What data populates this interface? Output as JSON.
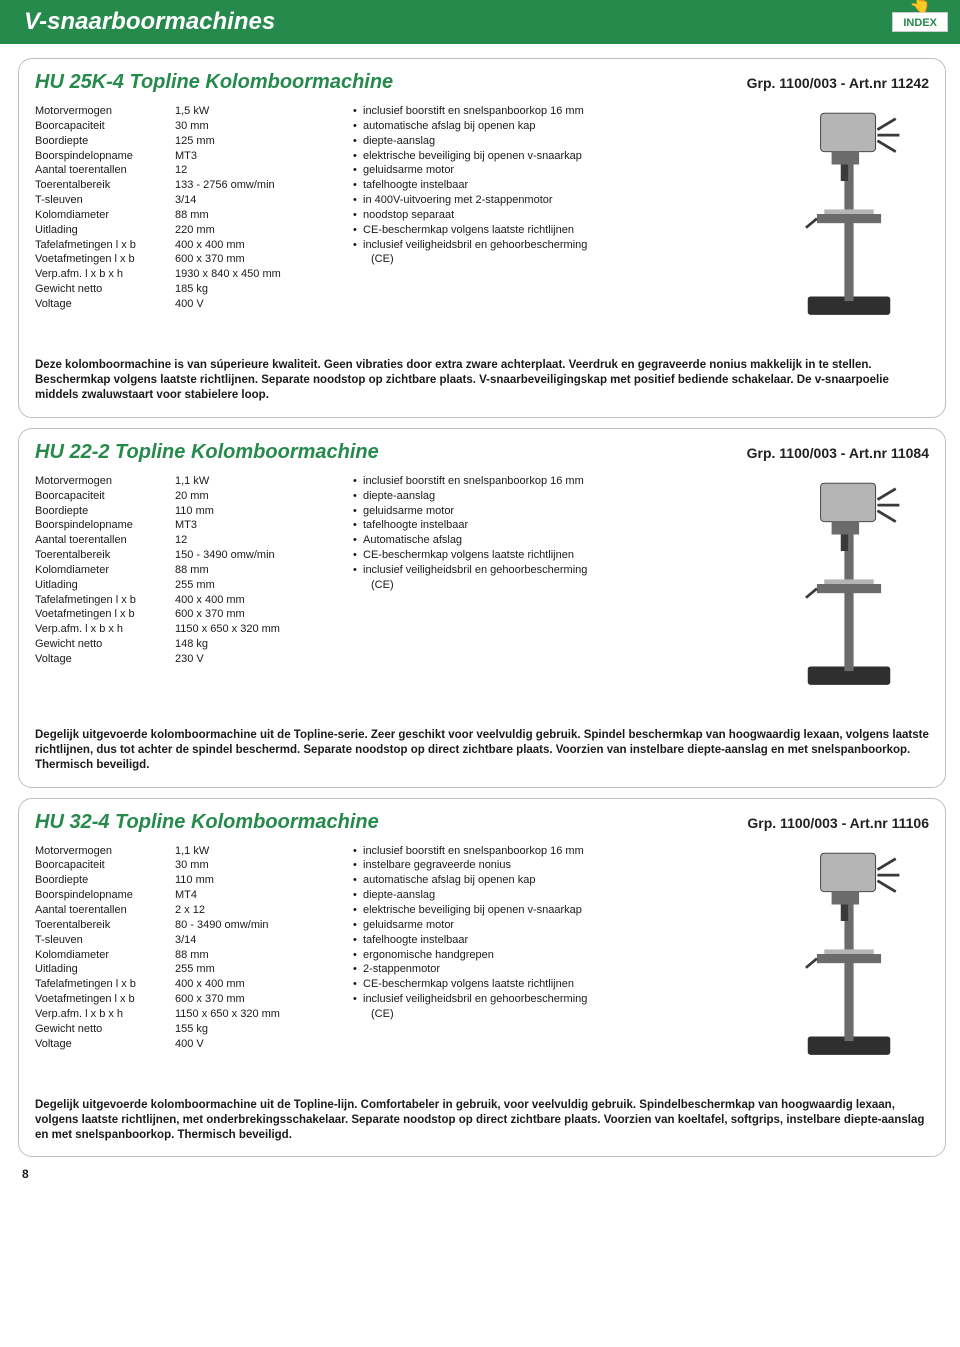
{
  "page": {
    "category_title": "V-snaarboormachines",
    "index_label": "INDEX",
    "page_number": "8"
  },
  "products": [
    {
      "title": "HU 25K-4 Topline Kolomboormachine",
      "ref": "Grp. 1100/003 - Art.nr 11242",
      "specs": [
        {
          "label": "Motorvermogen",
          "value": "1,5 kW"
        },
        {
          "label": "Boorcapaciteit",
          "value": "30 mm"
        },
        {
          "label": "Boordiepte",
          "value": "125 mm"
        },
        {
          "label": "Boorspindelopname",
          "value": "MT3"
        },
        {
          "label": "Aantal toerentallen",
          "value": "12"
        },
        {
          "label": "Toerentalbereik",
          "value": "133 - 2756 omw/min"
        },
        {
          "label": "T-sleuven",
          "value": "3/14"
        },
        {
          "label": "Kolomdiameter",
          "value": "88 mm"
        },
        {
          "label": "Uitlading",
          "value": "220 mm"
        },
        {
          "label": "Tafelafmetingen l x b",
          "value": "400 x 400 mm"
        },
        {
          "label": "Voetafmetingen l x b",
          "value": "600 x 370 mm"
        },
        {
          "label": "Verp.afm. l x b x h",
          "value": "1930 x 840 x 450 mm"
        },
        {
          "label": "Gewicht netto",
          "value": "185 kg"
        },
        {
          "label": "Voltage",
          "value": "400 V"
        }
      ],
      "features": [
        {
          "text": "inclusief boorstift en snelspanboorkop 16 mm"
        },
        {
          "text": "automatische afslag bij openen kap"
        },
        {
          "text": "diepte-aanslag"
        },
        {
          "text": "elektrische beveiliging bij openen v-snaarkap"
        },
        {
          "text": "geluidsarme motor"
        },
        {
          "text": "tafelhoogte instelbaar"
        },
        {
          "text": "in 400V-uitvoering met 2-stappenmotor"
        },
        {
          "text": "noodstop separaat"
        },
        {
          "text": "CE-beschermkap volgens laatste richtlijnen"
        },
        {
          "text": "inclusief veiligheidsbril en gehoorbescherming"
        },
        {
          "text": "(CE)",
          "indent": true
        }
      ],
      "description": "Deze kolomboormachine is van súperieure kwaliteit. Geen vibraties door extra zware achterplaat. Veerdruk en gegraveerde nonius makkelijk in te stellen. Beschermkap volgens laatste richtlijnen. Separate noodstop op zichtbare plaats. V-snaarbeveiligingskap met positief bediende schakelaar. De v-snaarpoelie middels zwaluwstaart voor stabielere loop."
    },
    {
      "title": "HU 22-2 Topline Kolomboormachine",
      "ref": "Grp. 1100/003 - Art.nr 11084",
      "specs": [
        {
          "label": "Motorvermogen",
          "value": "1,1 kW"
        },
        {
          "label": "Boorcapaciteit",
          "value": "20 mm"
        },
        {
          "label": "Boordiepte",
          "value": "110 mm"
        },
        {
          "label": "Boorspindelopname",
          "value": "MT3"
        },
        {
          "label": "Aantal toerentallen",
          "value": "12"
        },
        {
          "label": "Toerentalbereik",
          "value": "150 - 3490 omw/min"
        },
        {
          "label": "Kolomdiameter",
          "value": "88 mm"
        },
        {
          "label": "Uitlading",
          "value": "255 mm"
        },
        {
          "label": "Tafelafmetingen l x b",
          "value": "400 x 400 mm"
        },
        {
          "label": "Voetafmetingen l x b",
          "value": "600 x 370 mm"
        },
        {
          "label": "Verp.afm. l x b x h",
          "value": "1150 x 650 x 320 mm"
        },
        {
          "label": "Gewicht netto",
          "value": "148 kg"
        },
        {
          "label": "Voltage",
          "value": "230 V"
        }
      ],
      "features": [
        {
          "text": "inclusief boorstift en snelspanboorkop 16 mm"
        },
        {
          "text": "diepte-aanslag"
        },
        {
          "text": "geluidsarme motor"
        },
        {
          "text": "tafelhoogte instelbaar"
        },
        {
          "text": "Automatische afslag"
        },
        {
          "text": "CE-beschermkap volgens laatste richtlijnen"
        },
        {
          "text": "inclusief veiligheidsbril en gehoorbescherming"
        },
        {
          "text": "(CE)",
          "indent": true
        }
      ],
      "description": "Degelijk uitgevoerde kolomboormachine uit de Topline-serie. Zeer geschikt voor veelvuldig gebruik. Spindel beschermkap van hoogwaardig lexaan, volgens laatste richtlijnen, dus tot achter de spindel beschermd. Separate noodstop op direct zichtbare plaats. Voorzien van instelbare diepte-aanslag en met snelspanboorkop. Thermisch beveiligd."
    },
    {
      "title": "HU 32-4 Topline Kolomboormachine",
      "ref": "Grp. 1100/003 - Art.nr 11106",
      "specs": [
        {
          "label": "Motorvermogen",
          "value": "1,1 kW"
        },
        {
          "label": "Boorcapaciteit",
          "value": "30 mm"
        },
        {
          "label": "Boordiepte",
          "value": "110 mm"
        },
        {
          "label": "Boorspindelopname",
          "value": "MT4"
        },
        {
          "label": "Aantal toerentallen",
          "value": "2 x 12"
        },
        {
          "label": "Toerentalbereik",
          "value": "80 - 3490 omw/min"
        },
        {
          "label": "T-sleuven",
          "value": "3/14"
        },
        {
          "label": "Kolomdiameter",
          "value": "88 mm"
        },
        {
          "label": "Uitlading",
          "value": "255 mm"
        },
        {
          "label": "Tafelafmetingen l x b",
          "value": "400 x 400 mm"
        },
        {
          "label": "Voetafmetingen l x b",
          "value": "600 x 370 mm"
        },
        {
          "label": "Verp.afm. l x b x h",
          "value": "1150 x 650 x 320 mm"
        },
        {
          "label": "Gewicht netto",
          "value": "155 kg"
        },
        {
          "label": "Voltage",
          "value": "400 V"
        }
      ],
      "features": [
        {
          "text": "inclusief boorstift en snelspanboorkop 16 mm"
        },
        {
          "text": "instelbare gegraveerde nonius"
        },
        {
          "text": "automatische afslag bij openen kap"
        },
        {
          "text": "diepte-aanslag"
        },
        {
          "text": "elektrische beveiliging bij openen v-snaarkap"
        },
        {
          "text": "geluidsarme motor"
        },
        {
          "text": "tafelhoogte instelbaar"
        },
        {
          "text": "ergonomische handgrepen"
        },
        {
          "text": "2-stappenmotor"
        },
        {
          "text": "CE-beschermkap volgens laatste richtlijnen"
        },
        {
          "text": "inclusief veiligheidsbril en gehoorbescherming"
        },
        {
          "text": "(CE)",
          "indent": true
        }
      ],
      "description": "Degelijk uitgevoerde kolomboormachine uit de Topline-lijn. Comfortabeler in gebruik, voor veelvuldig gebruik. Spindelbeschermkap van hoogwaardig lexaan, volgens laatste richtlijnen, met onderbrekingsschakelaar. Separate noodstop op direct zichtbare plaats. Voorzien van koeltafel, softgrips, instelbare diepte-aanslag en met snelspanboorkop. Thermisch beveiligd."
    }
  ],
  "image": {
    "alt": "kolomboormachine-illustratie",
    "colors": {
      "body": "#6b6b6b",
      "dark": "#3a3a3a",
      "light": "#b5b5b5",
      "base": "#2f2f2f"
    }
  }
}
